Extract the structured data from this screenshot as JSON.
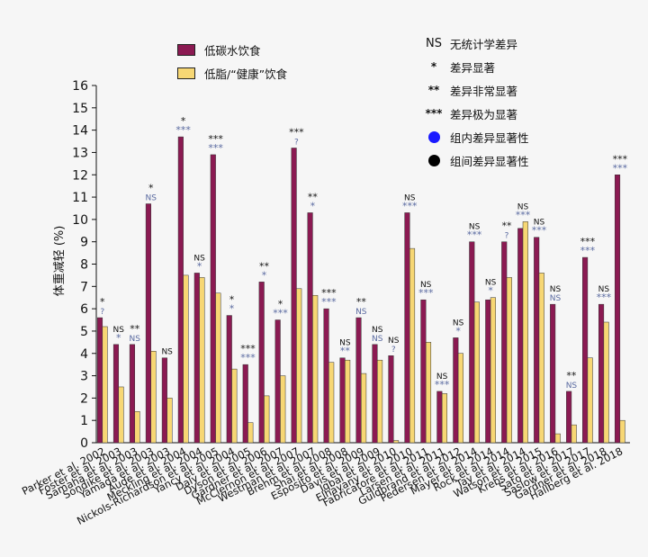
{
  "colors": {
    "low_carb": "#8b1a52",
    "low_fat": "#f7d774",
    "sig_within": "#1a1aff",
    "sig_between": "#000000",
    "within_mark": "#5a6aa0",
    "between_mark": "#111111"
  },
  "legend": {
    "series": [
      {
        "label": "低碳水饮食"
      },
      {
        "label": "低脂/“健康”饮食"
      }
    ],
    "symbols": [
      {
        "sym": "NS",
        "label": "无统计学差异"
      },
      {
        "sym": "*",
        "label": "差异显著"
      },
      {
        "sym": "**",
        "label": "差异非常显著"
      },
      {
        "sym": "***",
        "label": "差异极为显著"
      }
    ],
    "dots": [
      {
        "label": "组内差异显著性"
      },
      {
        "label": "组间差异显著性"
      }
    ]
  },
  "chart_data": {
    "type": "bar",
    "ylabel": "体重减轻 (%)",
    "ylim": [
      0,
      16
    ],
    "yticks": [
      0,
      1,
      2,
      3,
      4,
      5,
      6,
      7,
      8,
      9,
      10,
      11,
      12,
      13,
      14,
      15,
      16
    ],
    "categories": [
      "Parker et al. 2002",
      "Foster et al. 2003",
      "Samaha et al. 2003",
      "Sondike et al. 2003",
      "Yamada et al. 2003",
      "Aude et al. 2004",
      "Meckling et al. 2004",
      "Nickols-Richardson et al. 2005",
      "Yancy et al. 2004",
      "Daly et al. 2005",
      "Dyson et al. 2006",
      "Gardner et al. 2007",
      "McClernon et al. 2007",
      "Westman et al. 2007",
      "Brehm et al. 2008",
      "Shai et al. 2008",
      "Esposito et al. 2009",
      "Davis et al. 2009",
      "Iqbal et al. 2010",
      "Elhayany et al. 2010",
      "Fabricatore et al. 2011",
      "Larsen et al. 2011",
      "Guldbrand et al. 2012",
      "Pedersen et al. 2014",
      "Mayer et al. 2014",
      "Rock et al. 2014",
      "Tay et al. 2014",
      "Watson et al. 2015",
      "Krebs et al. 2016",
      "Sato et al. 2017",
      "Saslow et al. 2017",
      "Gardner et al. 2018",
      "Hallberg et al. 2018"
    ],
    "series": [
      {
        "name": "低碳水饮食",
        "values": [
          5.6,
          4.4,
          4.4,
          10.7,
          3.8,
          13.7,
          7.6,
          12.9,
          5.7,
          3.5,
          7.2,
          5.5,
          13.2,
          10.3,
          6.0,
          3.8,
          5.6,
          4.4,
          3.9,
          10.3,
          6.4,
          2.3,
          4.7,
          9.0,
          6.4,
          9.0,
          9.6,
          9.2,
          6.2,
          2.3,
          8.3,
          6.2,
          12.0
        ]
      },
      {
        "name": "低脂/“健康”饮食",
        "values": [
          5.2,
          2.5,
          1.4,
          4.1,
          2.0,
          7.5,
          7.4,
          6.7,
          3.3,
          0.9,
          2.1,
          3.0,
          6.9,
          6.6,
          3.6,
          3.7,
          3.1,
          3.7,
          0.1,
          8.7,
          4.5,
          2.2,
          4.0,
          6.3,
          6.5,
          7.4,
          9.9,
          7.6,
          0.4,
          0.8,
          3.8,
          5.4,
          1.0
        ]
      }
    ],
    "annotations": [
      {
        "between": "*",
        "within": "?"
      },
      {
        "between": "NS",
        "within": "*"
      },
      {
        "between": "**",
        "within": "NS"
      },
      {
        "between": "*",
        "within": "NS"
      },
      {
        "between": "NS",
        "within": ""
      },
      {
        "between": "*",
        "within": "***"
      },
      {
        "between": "NS",
        "within": "*"
      },
      {
        "between": "***",
        "within": "***"
      },
      {
        "between": "*",
        "within": "*"
      },
      {
        "between": "***",
        "within": "***"
      },
      {
        "between": "**",
        "within": "*"
      },
      {
        "between": "*",
        "within": "***"
      },
      {
        "between": "***",
        "within": "?"
      },
      {
        "between": "**",
        "within": "*"
      },
      {
        "between": "***",
        "within": "***"
      },
      {
        "between": "NS",
        "within": "**"
      },
      {
        "between": "**",
        "within": "NS"
      },
      {
        "between": "NS",
        "within": "NS"
      },
      {
        "between": "NS",
        "within": "?"
      },
      {
        "between": "NS",
        "within": "***"
      },
      {
        "between": "NS",
        "within": "***"
      },
      {
        "between": "NS",
        "within": "***"
      },
      {
        "between": "NS",
        "within": "*"
      },
      {
        "between": "NS",
        "within": "***"
      },
      {
        "between": "NS",
        "within": "*"
      },
      {
        "between": "**",
        "within": "?"
      },
      {
        "between": "NS",
        "within": "***"
      },
      {
        "between": "NS",
        "within": "***"
      },
      {
        "between": "NS",
        "within": "NS"
      },
      {
        "between": "**",
        "within": "NS"
      },
      {
        "between": "***",
        "within": "***"
      },
      {
        "between": "NS",
        "within": "***"
      },
      {
        "between": "***",
        "within": "***"
      }
    ]
  }
}
